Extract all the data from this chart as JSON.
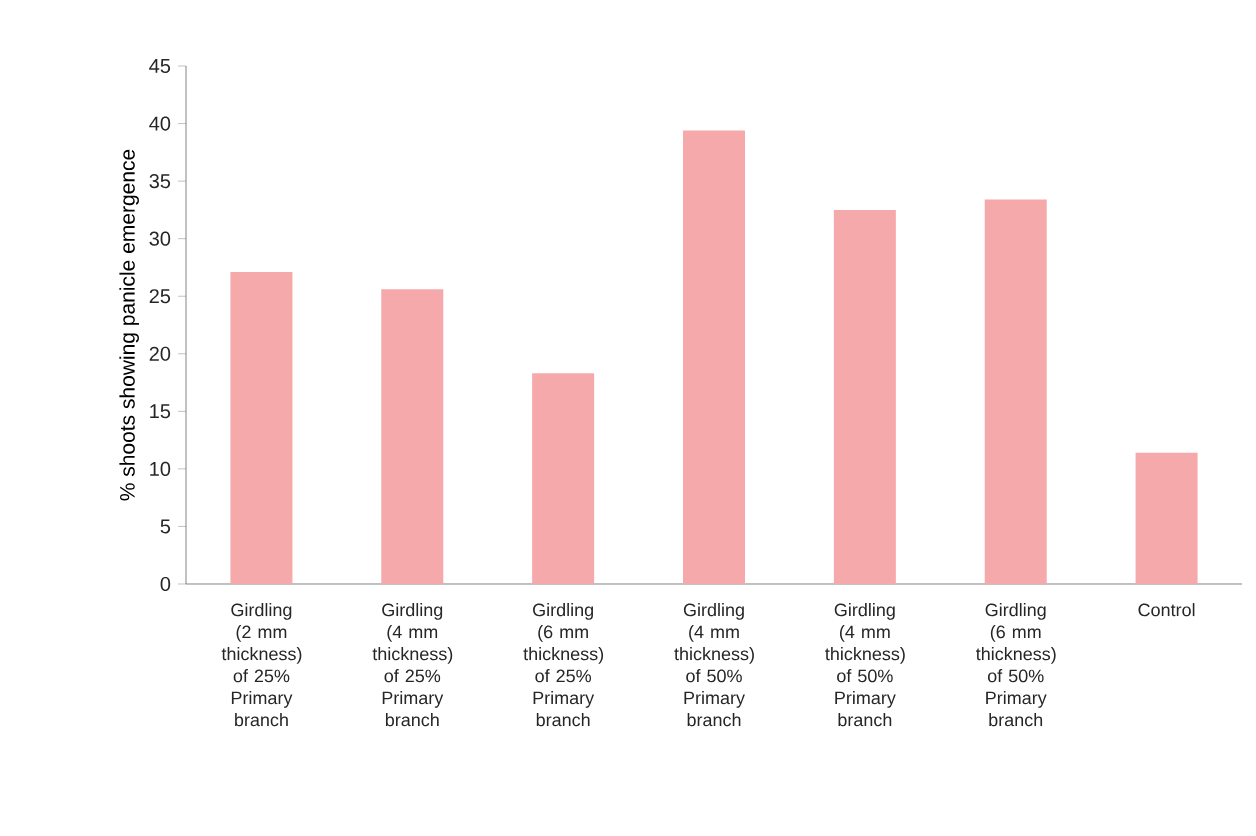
{
  "chart_data": {
    "type": "bar",
    "ylabel": "% shoots showing panicle emergence",
    "categories": [
      "Girdling (2 mm thickness) of 25% Primary branch",
      "Girdling (4 mm thickness) of 25% Primary branch",
      "Girdling (6 mm thickness) of 25% Primary branch",
      "Girdling (4 mm thickness) of 50% Primary branch",
      "Girdling (4 mm thickness) of 50% Primary branch",
      "Girdling (6 mm thickness) of 50% Primary branch",
      "Control"
    ],
    "values": [
      27.1,
      25.6,
      18.3,
      39.4,
      32.5,
      33.4,
      11.4
    ],
    "color": "#f6a9ab",
    "ylim": [
      0,
      45
    ],
    "yticks": [
      0,
      5,
      10,
      15,
      20,
      25,
      30,
      35,
      40,
      45
    ],
    "grid": false
  }
}
